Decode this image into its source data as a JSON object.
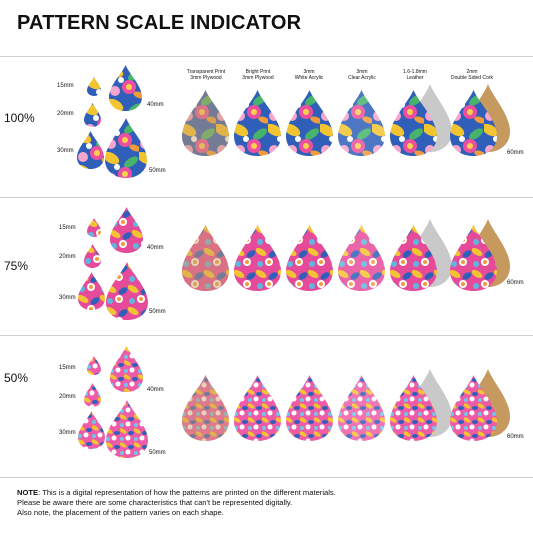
{
  "title": "PATTERN SCALE INDICATOR",
  "rows": [
    {
      "scale": "100%",
      "sizes": [
        "15mm",
        "20mm",
        "30mm",
        "40mm",
        "50mm"
      ],
      "end_label": "60mm"
    },
    {
      "scale": "75%",
      "sizes": [
        "15mm",
        "20mm",
        "30mm",
        "40mm",
        "50mm"
      ],
      "end_label": "60mm"
    },
    {
      "scale": "50%",
      "sizes": [
        "15mm",
        "20mm",
        "30mm",
        "40mm",
        "50mm"
      ],
      "end_label": "60mm"
    }
  ],
  "materials": [
    {
      "line1": "Transparent Print",
      "line2": "3mm Plywood"
    },
    {
      "line1": "Bright Print",
      "line2": "3mm Plywood"
    },
    {
      "line1": "3mm",
      "line2": "White Acrylic"
    },
    {
      "line1": "3mm",
      "line2": "Clear Acrylic"
    },
    {
      "line1": "1.6-1.8mm",
      "line2": "Leather"
    },
    {
      "line1": "2mm",
      "line2": "Double Sided Cork"
    }
  ],
  "note": {
    "label": "NOTE",
    "line1": ": This is a digital representation of how the patterns are printed on the different materials.",
    "line2": "Please be aware there are some characteristics that can't be represented digitally.",
    "line3": "Also note, the placement of the pattern varies on each shape."
  },
  "colors": {
    "pink": "#ec4fa0",
    "blue": "#2f5fb8",
    "yellow": "#f2c431",
    "orange": "#f39a3a",
    "wood": "#c9a06a",
    "leather": "#c9c9c9",
    "cork": "#c69a5e"
  }
}
